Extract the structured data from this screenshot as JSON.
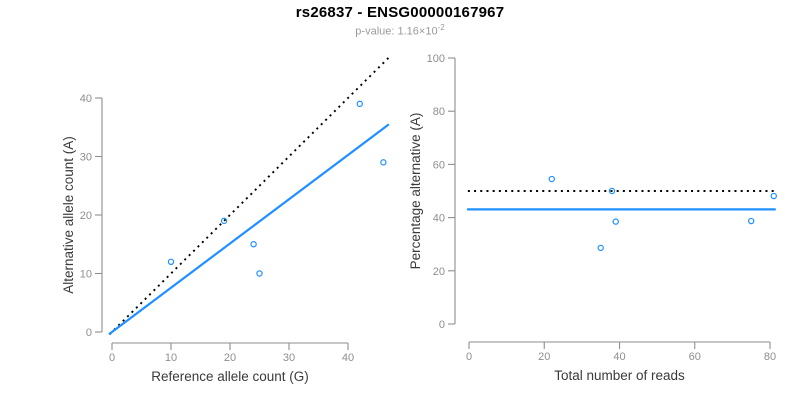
{
  "title": "rs26837 - ENSG00000167967",
  "subtitle": {
    "text": "p-value: 1.16×10",
    "exponent": "-2"
  },
  "colors": {
    "accent_blue": "#1E90FF",
    "line_black": "#000000",
    "axis_gray": "#8E8E8E",
    "tick_label_gray": "#8E8E8E",
    "axis_label_dark": "#3A3A3A",
    "title_black": "#000000",
    "subtitle_gray": "#9A9A9A",
    "background": "#FFFFFF"
  },
  "chart_data": [
    {
      "type": "scatter",
      "panel": "left",
      "title": "",
      "xlabel": "Reference allele count (G)",
      "ylabel": "Alternative allele count (A)",
      "xticks": [
        0,
        10,
        20,
        30,
        40
      ],
      "yticks": [
        0,
        10,
        20,
        30,
        40
      ],
      "xlim": [
        -1.9,
        47.9
      ],
      "ylim": [
        -1.9,
        47.2
      ],
      "grid": false,
      "legend": "none",
      "points": [
        [
          10,
          12
        ],
        [
          19,
          19
        ],
        [
          24,
          15
        ],
        [
          25,
          10
        ],
        [
          42,
          39
        ],
        [
          46,
          29
        ]
      ],
      "lines": [
        {
          "name": "identity-line",
          "style": "dotted",
          "color": "line_black",
          "x1": -0.4,
          "y1": -0.4,
          "x2": 47.2,
          "y2": 47.2
        },
        {
          "name": "fit-line",
          "style": "solid",
          "color": "accent_blue",
          "x1": -0.4,
          "y1": -0.3,
          "x2": 46.8,
          "y2": 35.4
        }
      ]
    },
    {
      "type": "scatter",
      "panel": "right",
      "title": "",
      "xlabel": "Total number of reads",
      "ylabel": "Percentage alternative (A)",
      "xticks": [
        0,
        20,
        40,
        60,
        80
      ],
      "yticks": [
        0,
        20,
        40,
        60,
        80,
        100
      ],
      "xlim": [
        -0.5,
        81.5
      ],
      "ylim": [
        -4,
        104
      ],
      "grid": false,
      "legend": "none",
      "points": [
        [
          22,
          54.5
        ],
        [
          38,
          50
        ],
        [
          35,
          28.6
        ],
        [
          39,
          38.5
        ],
        [
          75,
          38.7
        ],
        [
          81,
          48.1
        ]
      ],
      "lines": [
        {
          "name": "expected-50pct-line",
          "style": "dotted",
          "color": "line_black",
          "x1": -0.3,
          "y1": 50,
          "x2": 81.3,
          "y2": 50
        },
        {
          "name": "fit-line",
          "style": "solid",
          "color": "accent_blue",
          "x1": -0.3,
          "y1": 43.1,
          "x2": 81.3,
          "y2": 43.1
        }
      ]
    }
  ]
}
